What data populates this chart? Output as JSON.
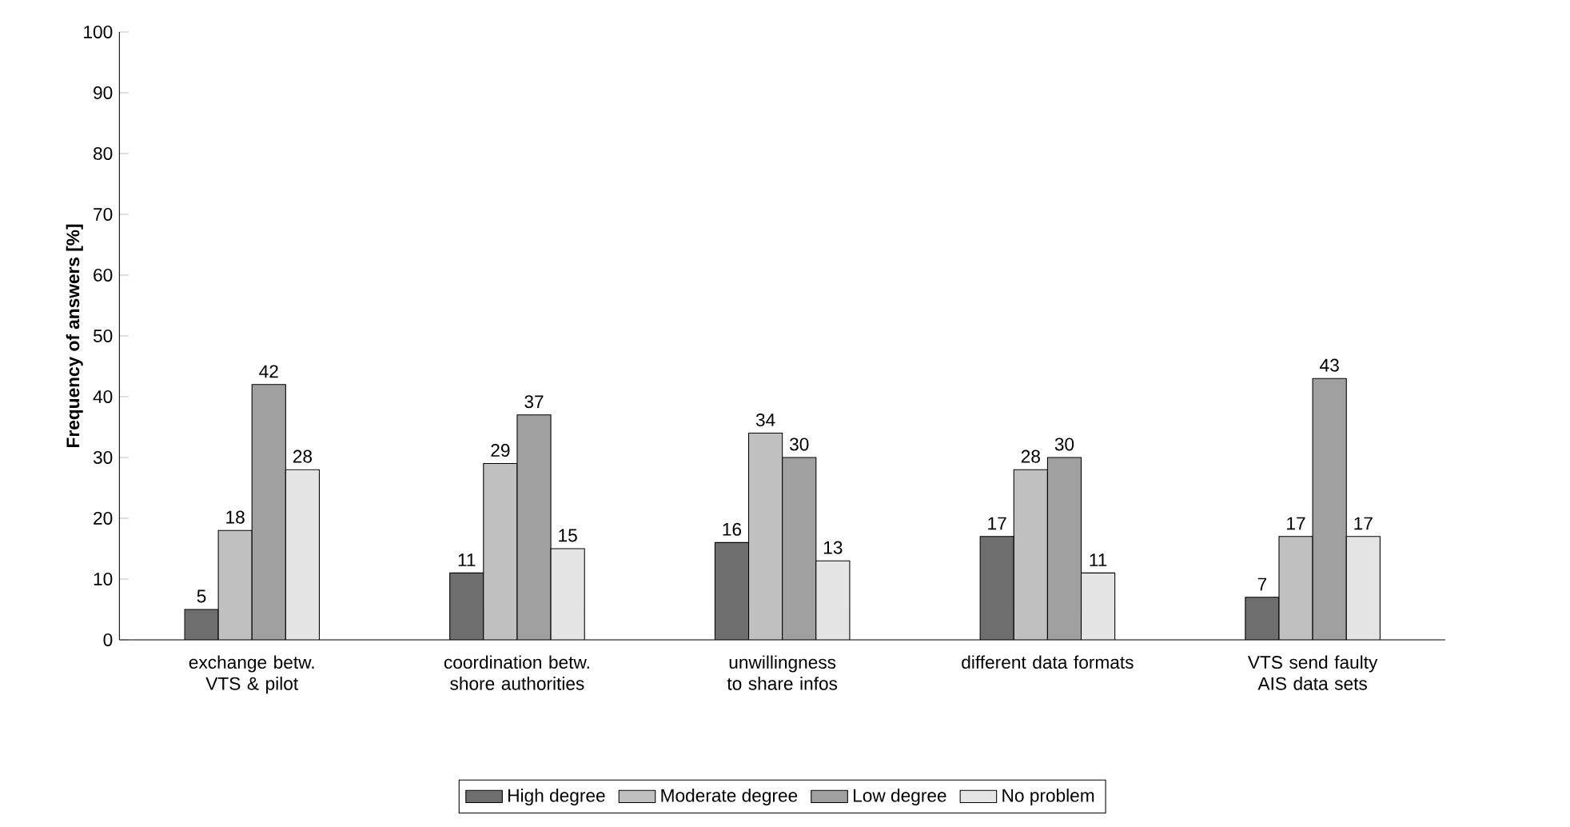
{
  "chart_data": {
    "type": "bar",
    "ylabel": "Frequency of answers [%]",
    "categories": [
      "exchange betw. VTS & pilot",
      "coordination betw. shore authorities",
      "unwillingness to share infos",
      "different data formats",
      "VTS send faulty AIS data sets"
    ],
    "series": [
      {
        "name": "High degree",
        "color": "#6e6e6e",
        "values": [
          5,
          11,
          16,
          17,
          7
        ]
      },
      {
        "name": "Moderate degree",
        "color": "#c0c0c0",
        "values": [
          18,
          29,
          34,
          28,
          17
        ]
      },
      {
        "name": "Low degree",
        "color": "#a0a0a0",
        "values": [
          42,
          37,
          30,
          30,
          43
        ]
      },
      {
        "name": "No problem",
        "color": "#e4e4e4",
        "values": [
          28,
          15,
          13,
          11,
          17
        ]
      }
    ],
    "ylim": [
      0,
      100
    ],
    "yticks": [
      0,
      10,
      20,
      30,
      40,
      50,
      60,
      70,
      80,
      90,
      100
    ],
    "data_labels": true,
    "legend": "bottom",
    "grid": false
  }
}
